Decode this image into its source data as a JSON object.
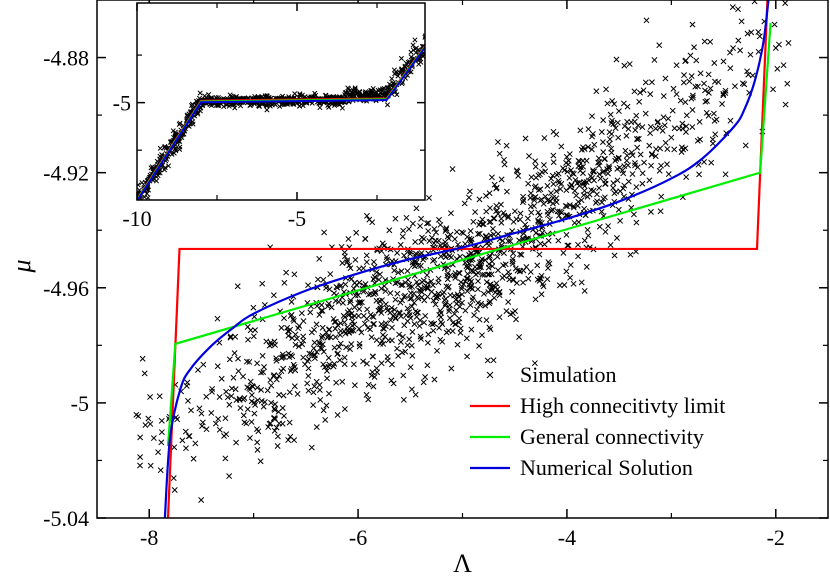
{
  "chart_data": [
    {
      "type": "scatter",
      "xlabel": "Λ",
      "ylabel": "μ",
      "xlim": [
        -8.5,
        -1.5
      ],
      "ylim": [
        -5.04,
        -4.86
      ],
      "xticks": [
        -8,
        -6,
        -4,
        -2
      ],
      "xtick_labels": [
        "-8",
        "-6",
        "-4",
        "-2"
      ],
      "yticks": [
        -5.04,
        -5.0,
        -4.96,
        -4.92,
        -4.88
      ],
      "ytick_labels": [
        "-5.04",
        "-5",
        "-4.96",
        "-4.92",
        "-4.88"
      ],
      "legend_position": "bottom-right",
      "grid": false,
      "series": [
        {
          "name": "Simulation",
          "kind": "scatter",
          "marker": "x",
          "color": "#000000",
          "description_points": "≈1500 points scattered around the trend from Λ≈-8 to Λ≈-2, with spread of about ±0.02 in μ",
          "trend_points": [
            [
              -8.0,
              -5.015
            ],
            [
              -7.0,
              -4.995
            ],
            [
              -6.0,
              -4.97
            ],
            [
              -5.0,
              -4.955
            ],
            [
              -4.5,
              -4.945
            ],
            [
              -4.0,
              -4.93
            ],
            [
              -3.0,
              -4.905
            ],
            [
              -2.5,
              -4.89
            ],
            [
              -2.0,
              -4.875
            ]
          ]
        },
        {
          "name": "High connecitivty limit",
          "kind": "line",
          "color": "#ff0000",
          "x": [
            -7.82,
            -7.71,
            -2.18,
            -2.08
          ],
          "y": [
            -5.04,
            -4.9465,
            -4.9465,
            -4.86
          ]
        },
        {
          "name": "General connectivity",
          "kind": "line",
          "color": "#00ee00",
          "x": [
            -7.82,
            -7.75,
            -2.15,
            -2.05
          ],
          "y": [
            -5.015,
            -4.9795,
            -4.92,
            -4.868
          ]
        },
        {
          "name": "Numerical Solution",
          "kind": "line",
          "color": "#0000dd",
          "x": [
            -7.85,
            -7.8,
            -7.7,
            -7.6,
            -7.4,
            -7.2,
            -7.0,
            -6.5,
            -6.0,
            -5.5,
            -5.0,
            -4.5,
            -4.0,
            -3.5,
            -3.0,
            -2.7,
            -2.4,
            -2.3,
            -2.2,
            -2.12,
            -2.07
          ],
          "y": [
            -5.04,
            -5.012,
            -4.995,
            -4.988,
            -4.98,
            -4.974,
            -4.969,
            -4.961,
            -4.955,
            -4.95,
            -4.946,
            -4.941,
            -4.936,
            -4.93,
            -4.922,
            -4.915,
            -4.904,
            -4.898,
            -4.888,
            -4.875,
            -4.86
          ]
        }
      ]
    },
    {
      "type": "line",
      "role": "inset",
      "xlim": [
        -10,
        -1.0
      ],
      "ylim": [
        -5.43,
        -4.56
      ],
      "xticks": [
        -10,
        -5
      ],
      "xtick_labels": [
        "-10",
        "-5"
      ],
      "yticks": [
        -5.0
      ],
      "ytick_labels": [
        "-5"
      ],
      "series": [
        {
          "name": "High connecitivty limit",
          "color": "#ff0000",
          "x": [
            -10,
            -8.0,
            -2.2,
            0
          ],
          "y": [
            -5.43,
            -4.995,
            -4.985,
            -4.56
          ]
        },
        {
          "name": "General connectivity",
          "color": "#00ee00",
          "x": [
            -10,
            -8.0,
            -2.2,
            0
          ],
          "y": [
            -5.43,
            -4.995,
            -4.985,
            -4.56
          ]
        },
        {
          "name": "Numerical Solution",
          "color": "#0000dd",
          "x": [
            -10,
            -8.0,
            -2.2,
            0
          ],
          "y": [
            -5.43,
            -4.995,
            -4.985,
            -4.56
          ]
        },
        {
          "name": "Simulation",
          "color": "#000000",
          "kind": "scatter",
          "marker": "x"
        }
      ]
    }
  ]
}
